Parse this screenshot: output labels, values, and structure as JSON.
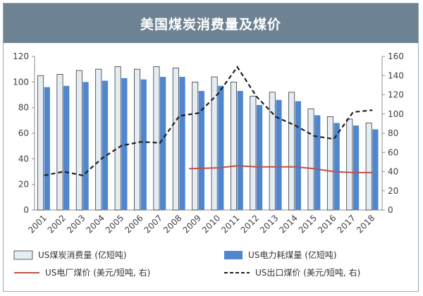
{
  "chart_data": {
    "type": "bar",
    "title": "美国煤炭消费量及煤价",
    "categories": [
      "2001",
      "2002",
      "2003",
      "2004",
      "2005",
      "2006",
      "2007",
      "2008",
      "2009",
      "2010",
      "2011",
      "2012",
      "2013",
      "2014",
      "2015",
      "2016",
      "2017",
      "2018"
    ],
    "left_axis": {
      "min": 0,
      "max": 120,
      "ticks": [
        0,
        20,
        40,
        60,
        80,
        100,
        120
      ]
    },
    "right_axis": {
      "min": 0,
      "max": 160,
      "ticks": [
        0,
        20,
        40,
        60,
        80,
        100,
        120,
        140,
        160
      ]
    },
    "series": [
      {
        "name": "US煤炭消费量 (亿短吨)",
        "kind": "bar",
        "axis": "left",
        "color": "#e4ecf4",
        "values": [
          105,
          106,
          109,
          110,
          112,
          110,
          112,
          111,
          100,
          104,
          100,
          89,
          92,
          92,
          79,
          73,
          71,
          68
        ]
      },
      {
        "name": "US电力耗煤量 (亿短吨)",
        "kind": "bar",
        "axis": "left",
        "color": "#4f86cd",
        "values": [
          96,
          97,
          100,
          101,
          103,
          102,
          104,
          104,
          93,
          97,
          93,
          82,
          86,
          85,
          74,
          68,
          66,
          63
        ]
      },
      {
        "name": "US电厂煤价 (美元/短吨, 右)",
        "kind": "line",
        "axis": "right",
        "color": "#c0504d",
        "x_start": "2009",
        "values": [
          null,
          null,
          null,
          null,
          null,
          null,
          null,
          null,
          43,
          44,
          46,
          45,
          45,
          45,
          43,
          40,
          39,
          39
        ]
      },
      {
        "name": "US出口煤价 (美元/短吨, 右)",
        "kind": "dashed-line",
        "axis": "right",
        "color": "#1f1f1f",
        "values": [
          36,
          40,
          36,
          54,
          67,
          71,
          70,
          98,
          101,
          121,
          149,
          118,
          97,
          88,
          77,
          74,
          102,
          104
        ]
      }
    ],
    "legend_position": "bottom"
  }
}
